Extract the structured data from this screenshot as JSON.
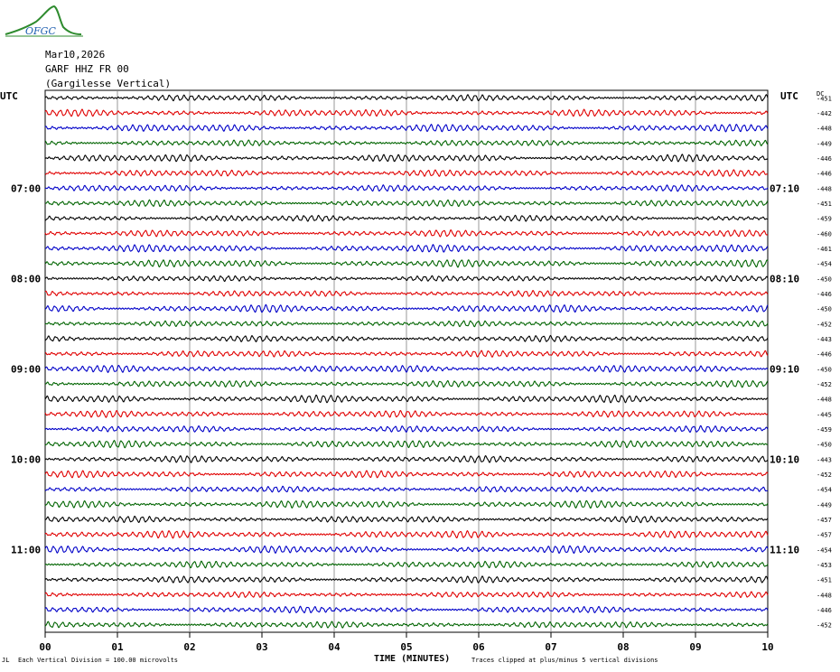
{
  "logo": {
    "text": "OFGC"
  },
  "header": {
    "date": "Mar10,2026",
    "channel": "GARF HHZ FR 00",
    "station": "(Gargilesse Vertical)"
  },
  "left_axis_title": "UTC",
  "right_axis_title": "UTC",
  "dc_header": "DC",
  "footer": {
    "division": "Each Vertical Division =  100.00 microvolts",
    "xlabel": "TIME (MINUTES)",
    "clip_note": "Traces clipped at plus/minus 5 vertical divisions"
  },
  "colors": {
    "cycle": [
      "#000000",
      "#e00000",
      "#0000c8",
      "#006400"
    ],
    "grid": "#808080"
  },
  "chart_data": {
    "type": "line",
    "title": "GARF HHZ FR 00 (Gargilesse Vertical)",
    "xlabel": "TIME (MINUTES)",
    "xlim": [
      0,
      10
    ],
    "x_ticks": [
      "00",
      "01",
      "02",
      "03",
      "04",
      "05",
      "06",
      "07",
      "08",
      "09",
      "10"
    ],
    "left_hour_labels": [
      {
        "row": 6,
        "label": "07:00"
      },
      {
        "row": 12,
        "label": "08:00"
      },
      {
        "row": 18,
        "label": "09:00"
      },
      {
        "row": 24,
        "label": "10:00"
      },
      {
        "row": 30,
        "label": "11:00"
      }
    ],
    "right_hour_labels": [
      {
        "row": 6,
        "label": "07:10"
      },
      {
        "row": 12,
        "label": "08:10"
      },
      {
        "row": 18,
        "label": "09:10"
      },
      {
        "row": 24,
        "label": "10:10"
      },
      {
        "row": 30,
        "label": "11:10"
      }
    ],
    "dc_offsets": [
      "-451",
      "-442",
      "-448",
      "-449",
      "-446",
      "-446",
      "-448",
      "-451",
      "-459",
      "-460",
      "-461",
      "-454",
      "-450",
      "-446",
      "-450",
      "-452",
      "-443",
      "-446",
      "-450",
      "-452",
      "-448",
      "-445",
      "-459",
      "-450",
      "-443",
      "-452",
      "-454",
      "-449",
      "-457",
      "-457",
      "-454",
      "-453",
      "-451",
      "-448",
      "-446",
      "-452"
    ]
  }
}
